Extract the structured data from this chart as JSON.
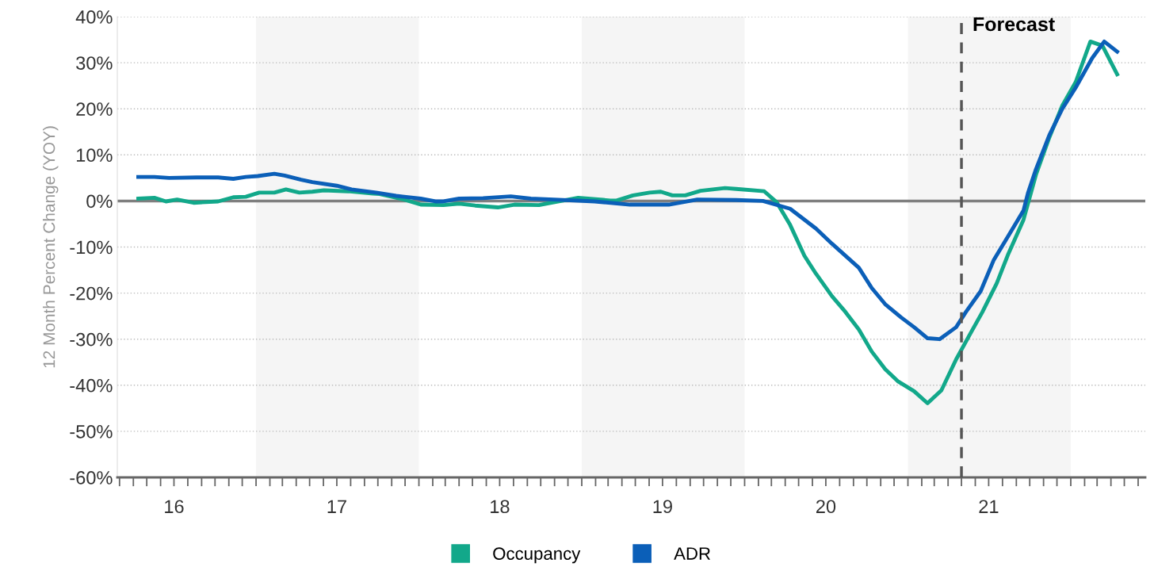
{
  "chart_data": {
    "type": "line",
    "ylabel": "12 Month Percent Change (YOY)",
    "ylim": [
      -60,
      40
    ],
    "yticks": [
      {
        "value": -60,
        "label": "-60%"
      },
      {
        "value": -50,
        "label": "-50%"
      },
      {
        "value": -40,
        "label": "-40%"
      },
      {
        "value": -30,
        "label": "-30%"
      },
      {
        "value": -20,
        "label": "-20%"
      },
      {
        "value": -10,
        "label": "-10%"
      },
      {
        "value": 0,
        "label": "0%"
      },
      {
        "value": 10,
        "label": "10%"
      },
      {
        "value": 20,
        "label": "20%"
      },
      {
        "value": 30,
        "label": "30%"
      },
      {
        "value": 40,
        "label": "40%"
      }
    ],
    "xlim": [
      "2016-02-25",
      "2022-06-17"
    ],
    "xticks": [
      {
        "value": "2016-03-01",
        "label": null
      },
      {
        "value": "2016-04-01",
        "label": null
      },
      {
        "value": "2016-05-01",
        "label": null
      },
      {
        "value": "2016-06-01",
        "label": null
      },
      {
        "value": "2016-07-01",
        "label": "16"
      },
      {
        "value": "2016-08-01",
        "label": null
      },
      {
        "value": "2016-09-01",
        "label": null
      },
      {
        "value": "2016-10-01",
        "label": null
      },
      {
        "value": "2016-11-01",
        "label": null
      },
      {
        "value": "2016-12-01",
        "label": null
      },
      {
        "value": "2017-01-01",
        "label": null
      },
      {
        "value": "2017-02-01",
        "label": null
      },
      {
        "value": "2017-03-01",
        "label": null
      },
      {
        "value": "2017-04-01",
        "label": null
      },
      {
        "value": "2017-05-01",
        "label": null
      },
      {
        "value": "2017-06-01",
        "label": null
      },
      {
        "value": "2017-07-01",
        "label": "17"
      },
      {
        "value": "2017-08-01",
        "label": null
      },
      {
        "value": "2017-09-01",
        "label": null
      },
      {
        "value": "2017-10-01",
        "label": null
      },
      {
        "value": "2017-11-01",
        "label": null
      },
      {
        "value": "2017-12-01",
        "label": null
      },
      {
        "value": "2018-01-01",
        "label": null
      },
      {
        "value": "2018-02-01",
        "label": null
      },
      {
        "value": "2018-03-01",
        "label": null
      },
      {
        "value": "2018-04-01",
        "label": null
      },
      {
        "value": "2018-05-01",
        "label": null
      },
      {
        "value": "2018-06-01",
        "label": null
      },
      {
        "value": "2018-07-01",
        "label": "18"
      },
      {
        "value": "2018-08-01",
        "label": null
      },
      {
        "value": "2018-09-01",
        "label": null
      },
      {
        "value": "2018-10-01",
        "label": null
      },
      {
        "value": "2018-11-01",
        "label": null
      },
      {
        "value": "2018-12-01",
        "label": null
      },
      {
        "value": "2019-01-01",
        "label": null
      },
      {
        "value": "2019-02-01",
        "label": null
      },
      {
        "value": "2019-03-01",
        "label": null
      },
      {
        "value": "2019-04-01",
        "label": null
      },
      {
        "value": "2019-05-01",
        "label": null
      },
      {
        "value": "2019-06-01",
        "label": null
      },
      {
        "value": "2019-07-01",
        "label": "19"
      },
      {
        "value": "2019-08-01",
        "label": null
      },
      {
        "value": "2019-09-01",
        "label": null
      },
      {
        "value": "2019-10-01",
        "label": null
      },
      {
        "value": "2019-11-01",
        "label": null
      },
      {
        "value": "2019-12-01",
        "label": null
      },
      {
        "value": "2020-01-01",
        "label": null
      },
      {
        "value": "2020-02-01",
        "label": null
      },
      {
        "value": "2020-03-01",
        "label": null
      },
      {
        "value": "2020-04-01",
        "label": null
      },
      {
        "value": "2020-05-01",
        "label": null
      },
      {
        "value": "2020-06-01",
        "label": null
      },
      {
        "value": "2020-07-01",
        "label": "20"
      },
      {
        "value": "2020-08-01",
        "label": null
      },
      {
        "value": "2020-09-01",
        "label": null
      },
      {
        "value": "2020-10-01",
        "label": null
      },
      {
        "value": "2020-11-01",
        "label": null
      },
      {
        "value": "2020-12-01",
        "label": null
      },
      {
        "value": "2021-01-01",
        "label": null
      },
      {
        "value": "2021-02-01",
        "label": null
      },
      {
        "value": "2021-03-01",
        "label": null
      },
      {
        "value": "2021-04-01",
        "label": null
      },
      {
        "value": "2021-05-01",
        "label": null
      },
      {
        "value": "2021-06-01",
        "label": null
      },
      {
        "value": "2021-07-01",
        "label": "21"
      },
      {
        "value": "2021-08-01",
        "label": null
      },
      {
        "value": "2021-09-01",
        "label": null
      },
      {
        "value": "2021-10-01",
        "label": null
      },
      {
        "value": "2021-11-01",
        "label": null
      },
      {
        "value": "2021-12-01",
        "label": null
      },
      {
        "value": "2022-01-01",
        "label": null
      },
      {
        "value": "2022-02-01",
        "label": null
      },
      {
        "value": "2022-03-01",
        "label": null
      },
      {
        "value": "2022-04-01",
        "label": null
      },
      {
        "value": "2022-05-01",
        "label": null
      },
      {
        "value": "2022-06-01",
        "label": null
      }
    ],
    "grid": "y",
    "legend": "bottom",
    "marker": "none",
    "line_style": "solid",
    "bands": [
      {
        "axis": "x",
        "from": "2017-01-01",
        "to": "2018-01-01",
        "color": "#f5f5f5"
      },
      {
        "axis": "x",
        "from": "2019-01-01",
        "to": "2020-01-01",
        "color": "#f5f5f5"
      },
      {
        "axis": "x",
        "from": "2021-01-01",
        "to": "2022-01-01",
        "color": "#f5f5f5"
      }
    ],
    "ref_lines": [
      {
        "axis": "y",
        "value": 0,
        "color": "#7f7f7f",
        "line_style": "solid"
      },
      {
        "axis": "x",
        "value": "2021-05-01",
        "label": "Forecast",
        "color": "#555555",
        "line_style": "dashed"
      }
    ],
    "series": [
      {
        "name": "Occupancy",
        "color": "#12a88a",
        "x": [
          "2016-04-12",
          "2016-05-18",
          "2016-06-13",
          "2016-07-08",
          "2016-08-14",
          "2016-10-08",
          "2016-11-11",
          "2016-12-09",
          "2017-01-08",
          "2017-02-11",
          "2017-03-09",
          "2017-04-08",
          "2017-05-07",
          "2017-06-02",
          "2017-07-26",
          "2017-09-20",
          "2017-10-05",
          "2017-11-29",
          "2018-01-05",
          "2018-02-25",
          "2018-04-01",
          "2018-05-07",
          "2018-06-27",
          "2018-08-03",
          "2018-09-27",
          "2018-10-30",
          "2018-12-24",
          "2019-03-06",
          "2019-03-20",
          "2019-04-26",
          "2019-06-02",
          "2019-06-27",
          "2019-07-23",
          "2019-08-21",
          "2019-09-24",
          "2019-11-18",
          "2019-12-13",
          "2020-02-14",
          "2020-03-13",
          "2020-04-12",
          "2020-05-14",
          "2020-06-09",
          "2020-07-15",
          "2020-08-14",
          "2020-09-13",
          "2020-10-12",
          "2020-11-11",
          "2020-12-09",
          "2021-01-15",
          "2021-02-14",
          "2021-03-17",
          "2021-04-19",
          "2021-05-18",
          "2021-06-17",
          "2021-07-19",
          "2021-08-14",
          "2021-09-17",
          "2021-10-15",
          "2021-11-14",
          "2021-12-13",
          "2022-01-12",
          "2022-02-14",
          "2022-03-13",
          "2022-04-15"
        ],
        "values": [
          0.5,
          0.7,
          -0.1,
          0.3,
          -0.4,
          -0.1,
          0.8,
          0.9,
          1.8,
          1.8,
          2.5,
          1.8,
          2.0,
          2.3,
          2.1,
          1.6,
          1.5,
          0.3,
          -0.8,
          -0.9,
          -0.6,
          -1.0,
          -1.4,
          -0.8,
          -0.9,
          -0.3,
          0.7,
          0.1,
          0.1,
          1.2,
          1.8,
          2.0,
          1.2,
          1.2,
          2.2,
          2.8,
          2.6,
          2.1,
          -0.3,
          -5.2,
          -11.9,
          -15.8,
          -20.7,
          -24.1,
          -27.9,
          -32.7,
          -36.5,
          -39.1,
          -41.3,
          -43.9,
          -41.1,
          -34.4,
          -29.3,
          -24.1,
          -17.9,
          -11.5,
          -4.1,
          5.7,
          13.8,
          20.7,
          25.8,
          34.6,
          33.7,
          27.5
        ]
      },
      {
        "name": "ADR",
        "color": "#0b5fb8",
        "x": [
          "2016-04-12",
          "2016-05-18",
          "2016-06-20",
          "2016-08-21",
          "2016-10-08",
          "2016-11-11",
          "2016-12-09",
          "2017-01-05",
          "2017-02-11",
          "2017-03-06",
          "2017-04-12",
          "2017-05-07",
          "2017-07-01",
          "2017-08-03",
          "2017-09-27",
          "2017-11-11",
          "2018-01-05",
          "2018-02-07",
          "2018-02-25",
          "2018-04-01",
          "2018-05-25",
          "2018-07-26",
          "2018-09-09",
          "2018-10-30",
          "2019-01-30",
          "2019-04-19",
          "2019-07-15",
          "2019-09-17",
          "2019-12-13",
          "2020-02-11",
          "2020-04-12",
          "2020-06-09",
          "2020-07-15",
          "2020-09-13",
          "2020-10-12",
          "2020-11-11",
          "2020-12-17",
          "2021-01-15",
          "2021-02-14",
          "2021-03-13",
          "2021-04-19",
          "2021-05-11",
          "2021-06-13",
          "2021-07-12",
          "2021-08-14",
          "2021-09-17",
          "2021-09-27",
          "2021-10-15",
          "2021-11-14",
          "2021-12-13",
          "2022-01-12",
          "2022-02-18",
          "2022-03-17",
          "2022-04-15"
        ],
        "values": [
          5.2,
          5.2,
          5.0,
          5.1,
          5.1,
          4.8,
          5.2,
          5.4,
          5.9,
          5.5,
          4.6,
          4.1,
          3.3,
          2.5,
          1.8,
          1.1,
          0.5,
          -0.1,
          -0.1,
          0.5,
          0.6,
          1.0,
          0.5,
          0.3,
          -0.1,
          -0.8,
          -0.8,
          0.3,
          0.2,
          0.0,
          -1.7,
          -6.0,
          -9.3,
          -14.5,
          -18.9,
          -22.4,
          -25.3,
          -27.4,
          -29.8,
          -30.0,
          -27.4,
          -24.1,
          -19.6,
          -12.9,
          -7.6,
          -2.1,
          1.7,
          6.9,
          14.3,
          20.0,
          24.6,
          31.0,
          34.6,
          32.4
        ]
      }
    ]
  }
}
